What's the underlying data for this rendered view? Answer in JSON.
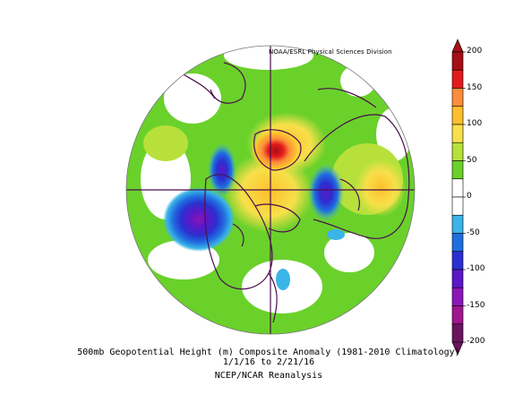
{
  "credit": "NOAA/ESRL Physical Sciences Division",
  "caption": {
    "line1": "500mb Geopotential Height (m) Composite Anomaly (1981-2010 Climatology)",
    "line2": "1/1/16  to 2/21/16",
    "line3": "NCEP/NCAR Reanalysis"
  },
  "colorbar": {
    "labels": [
      "200",
      "150",
      "100",
      "50",
      "0",
      "-50",
      "-100",
      "-150",
      "-200"
    ],
    "colors": [
      "#a50f15",
      "#e31a1c",
      "#fd8d3c",
      "#fdbf2d",
      "#f7e04a",
      "#b7e13a",
      "#6ad12b",
      "#ffffff",
      "#ffffff",
      "#3bb4e8",
      "#1f6ee0",
      "#2c2fd0",
      "#5a18c8",
      "#8a16b8",
      "#a0168f",
      "#6a1460"
    ]
  },
  "map": {
    "projection": "north-polar-stereographic",
    "icons": [
      "continent-outlines",
      "lat-lon-cross"
    ]
  }
}
